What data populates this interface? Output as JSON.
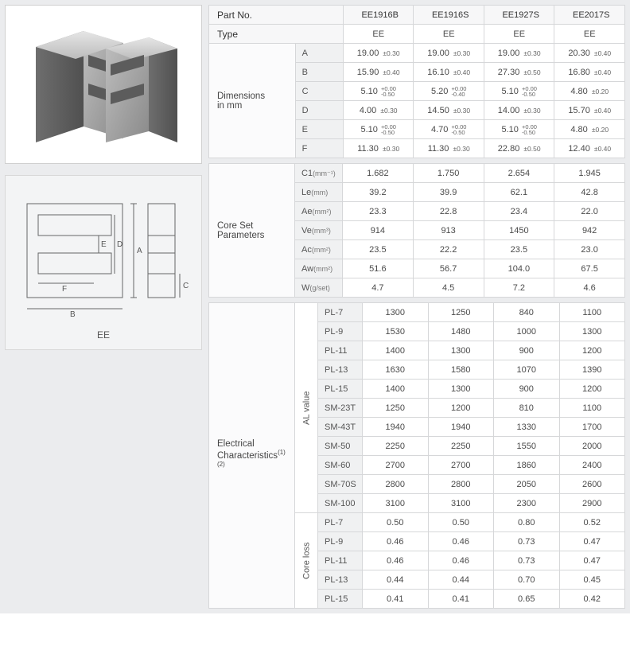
{
  "parts": [
    "EE1916B",
    "EE1916S",
    "EE1927S",
    "EE2017S"
  ],
  "headers": {
    "part_no": "Part No.",
    "type": "Type"
  },
  "type_row": [
    "EE",
    "EE",
    "EE",
    "EE"
  ],
  "dimensions": {
    "label": "Dimensions\nin mm",
    "rows": [
      {
        "k": "A",
        "v": [
          [
            "19.00",
            "±0.30"
          ],
          [
            "19.00",
            "±0.30"
          ],
          [
            "19.00",
            "±0.30"
          ],
          [
            "20.30",
            "±0.40"
          ]
        ]
      },
      {
        "k": "B",
        "v": [
          [
            "15.90",
            "±0.40"
          ],
          [
            "16.10",
            "±0.40"
          ],
          [
            "27.30",
            "±0.50"
          ],
          [
            "16.80",
            "±0.40"
          ]
        ]
      },
      {
        "k": "C",
        "v": [
          [
            "5.10",
            [
              "+0.00",
              "-0.50"
            ]
          ],
          [
            "5.20",
            [
              "+0.00",
              "-0.40"
            ]
          ],
          [
            "5.10",
            [
              "+0.00",
              "-0.50"
            ]
          ],
          [
            "4.80",
            "±0.20"
          ]
        ]
      },
      {
        "k": "D",
        "v": [
          [
            "4.00",
            "±0.30"
          ],
          [
            "14.50",
            "±0.30"
          ],
          [
            "14.00",
            "±0.30"
          ],
          [
            "15.70",
            "±0.40"
          ]
        ]
      },
      {
        "k": "E",
        "v": [
          [
            "5.10",
            [
              "+0.00",
              "-0.50"
            ]
          ],
          [
            "4.70",
            [
              "+0.00",
              "-0.50"
            ]
          ],
          [
            "5.10",
            [
              "+0.00",
              "-0.50"
            ]
          ],
          [
            "4.80",
            "±0.20"
          ]
        ]
      },
      {
        "k": "F",
        "v": [
          [
            "11.30",
            "±0.30"
          ],
          [
            "11.30",
            "±0.30"
          ],
          [
            "22.80",
            "±0.50"
          ],
          [
            "12.40",
            "±0.40"
          ]
        ]
      }
    ]
  },
  "coreset": {
    "label": "Core Set\nParameters",
    "rows": [
      {
        "k": "C1",
        "unit": "(mm⁻¹)",
        "v": [
          "1.682",
          "1.750",
          "2.654",
          "1.945"
        ]
      },
      {
        "k": "Le",
        "unit": "(mm)",
        "v": [
          "39.2",
          "39.9",
          "62.1",
          "42.8"
        ]
      },
      {
        "k": "Ae",
        "unit": "(mm²)",
        "v": [
          "23.3",
          "22.8",
          "23.4",
          "22.0"
        ]
      },
      {
        "k": "Ve",
        "unit": "(mm³)",
        "v": [
          "914",
          "913",
          "1450",
          "942"
        ]
      },
      {
        "k": "Ac",
        "unit": "(mm²)",
        "v": [
          "23.5",
          "22.2",
          "23.5",
          "23.0"
        ]
      },
      {
        "k": "Aw",
        "unit": "(mm²)",
        "v": [
          "51.6",
          "56.7",
          "104.0",
          "67.5"
        ]
      },
      {
        "k": "W",
        "unit": "(g/set)",
        "v": [
          "4.7",
          "4.5",
          "7.2",
          "4.6"
        ]
      }
    ]
  },
  "electrical": {
    "label": "Electrical\nCharacteristics",
    "note_sup": "(1)(2)",
    "groups": [
      {
        "name": "AL value",
        "rows": [
          {
            "k": "PL-7",
            "v": [
              "1300",
              "1250",
              "840",
              "1100"
            ]
          },
          {
            "k": "PL-9",
            "v": [
              "1530",
              "1480",
              "1000",
              "1300"
            ]
          },
          {
            "k": "PL-11",
            "v": [
              "1400",
              "1300",
              "900",
              "1200"
            ]
          },
          {
            "k": "PL-13",
            "v": [
              "1630",
              "1580",
              "1070",
              "1390"
            ]
          },
          {
            "k": "PL-15",
            "v": [
              "1400",
              "1300",
              "900",
              "1200"
            ]
          },
          {
            "k": "SM-23T",
            "v": [
              "1250",
              "1200",
              "810",
              "1100"
            ]
          },
          {
            "k": "SM-43T",
            "v": [
              "1940",
              "1940",
              "1330",
              "1700"
            ]
          },
          {
            "k": "SM-50",
            "v": [
              "2250",
              "2250",
              "1550",
              "2000"
            ]
          },
          {
            "k": "SM-60",
            "v": [
              "2700",
              "2700",
              "1860",
              "2400"
            ]
          },
          {
            "k": "SM-70S",
            "v": [
              "2800",
              "2800",
              "2050",
              "2600"
            ]
          },
          {
            "k": "SM-100",
            "v": [
              "3100",
              "3100",
              "2300",
              "2900"
            ]
          }
        ]
      },
      {
        "name": "Core loss",
        "rows": [
          {
            "k": "PL-7",
            "v": [
              "0.50",
              "0.50",
              "0.80",
              "0.52"
            ]
          },
          {
            "k": "PL-9",
            "v": [
              "0.46",
              "0.46",
              "0.73",
              "0.47"
            ]
          },
          {
            "k": "PL-11",
            "v": [
              "0.46",
              "0.46",
              "0.73",
              "0.47"
            ]
          },
          {
            "k": "PL-13",
            "v": [
              "0.44",
              "0.44",
              "0.70",
              "0.45"
            ]
          },
          {
            "k": "PL-15",
            "v": [
              "0.41",
              "0.41",
              "0.65",
              "0.42"
            ]
          }
        ]
      }
    ]
  },
  "diagram": {
    "label": "EE",
    "dims": [
      "A",
      "B",
      "C",
      "D",
      "E",
      "F"
    ]
  },
  "colors": {
    "page_bg": "#ebecee",
    "border": "#d6d7d9",
    "header_bg": "#f7f7f8",
    "rowlabel_bg": "#f0f1f2",
    "text": "#4a4a4a"
  }
}
